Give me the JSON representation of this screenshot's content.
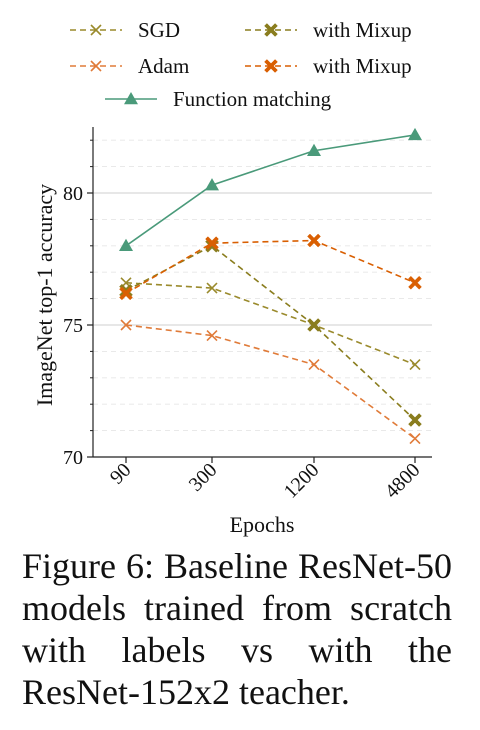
{
  "chart_data": {
    "type": "line",
    "xlabel": "Epochs",
    "ylabel": "ImageNet top-1 accuracy",
    "categories": [
      "90",
      "300",
      "1200",
      "4800"
    ],
    "ylim": [
      70,
      82.5
    ],
    "yticks": [
      70,
      75,
      80
    ],
    "grid": true,
    "legend_position": "top",
    "series": [
      {
        "name": "SGD",
        "color": "#9a8a2c",
        "marker": "x",
        "dashed": true,
        "values": [
          76.6,
          76.4,
          75.0,
          73.5
        ]
      },
      {
        "name": "with Mixup",
        "color": "#8a7d1e",
        "marker": "X",
        "dashed": true,
        "values": [
          76.3,
          78.0,
          75.0,
          71.4
        ]
      },
      {
        "name": "Adam",
        "color": "#e07b39",
        "marker": "x",
        "dashed": true,
        "values": [
          75.0,
          74.6,
          73.5,
          70.7
        ]
      },
      {
        "name": "with Mixup",
        "color": "#d95f02",
        "marker": "X",
        "dashed": true,
        "values": [
          76.2,
          78.1,
          78.2,
          76.6
        ]
      },
      {
        "name": "Function matching",
        "color": "#4a9a7a",
        "marker": "triangle",
        "dashed": false,
        "values": [
          78.0,
          80.3,
          81.6,
          82.2
        ]
      }
    ]
  },
  "caption": "Figure 6: Baseline ResNet-50 models trained from scratch with labels vs with the ResNet-152x2 teacher."
}
